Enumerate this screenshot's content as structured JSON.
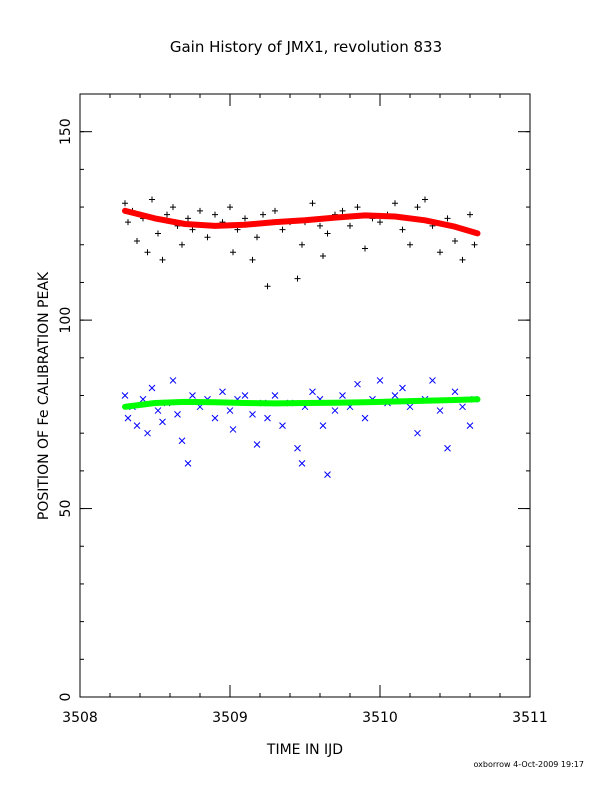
{
  "chart_data": {
    "type": "scatter",
    "title": "Gain History of JMX1, revolution 833",
    "xlabel": "TIME IN IJD",
    "ylabel": "POSITION OF Fe CALIBRATION PEAK",
    "xlim": [
      3508,
      3511
    ],
    "ylim": [
      0,
      160
    ],
    "x_ticks": [
      3508,
      3509,
      3510,
      3511
    ],
    "y_ticks": [
      0,
      50,
      100,
      150
    ],
    "x_ticks_minor_step": 0.2,
    "y_ticks_minor_step": 10,
    "grid": false,
    "x_range_observed": [
      3508.29,
      3510.65
    ],
    "series": [
      {
        "marker": "plus",
        "color": "#000000",
        "kind": "scatter",
        "x": [
          3508.3,
          3508.32,
          3508.35,
          3508.38,
          3508.42,
          3508.45,
          3508.48,
          3508.52,
          3508.55,
          3508.58,
          3508.62,
          3508.65,
          3508.68,
          3508.72,
          3508.75,
          3508.8,
          3508.85,
          3508.9,
          3508.95,
          3509.0,
          3509.02,
          3509.05,
          3509.1,
          3509.15,
          3509.18,
          3509.22,
          3509.25,
          3509.3,
          3509.35,
          3509.4,
          3509.45,
          3509.48,
          3509.5,
          3509.55,
          3509.6,
          3509.62,
          3509.65,
          3509.7,
          3509.75,
          3509.8,
          3509.85,
          3509.9,
          3509.95,
          3510.0,
          3510.05,
          3510.1,
          3510.15,
          3510.2,
          3510.25,
          3510.3,
          3510.35,
          3510.4,
          3510.45,
          3510.5,
          3510.55,
          3510.6,
          3510.63
        ],
        "y": [
          131,
          126,
          129,
          121,
          127,
          118,
          132,
          123,
          116,
          128,
          130,
          125,
          120,
          127,
          124,
          129,
          122,
          128,
          126,
          130,
          118,
          124,
          127,
          116,
          122,
          128,
          109,
          129,
          124,
          126,
          111,
          120,
          126,
          131,
          125,
          117,
          123,
          128,
          129,
          125,
          130,
          119,
          127,
          126,
          128,
          131,
          124,
          120,
          130,
          132,
          125,
          118,
          127,
          121,
          116,
          128,
          120
        ]
      },
      {
        "marker": "cross",
        "color": "#0000ff",
        "kind": "scatter",
        "x": [
          3508.3,
          3508.32,
          3508.35,
          3508.38,
          3508.42,
          3508.45,
          3508.48,
          3508.52,
          3508.55,
          3508.58,
          3508.62,
          3508.65,
          3508.68,
          3508.72,
          3508.75,
          3508.8,
          3508.85,
          3508.9,
          3508.95,
          3509.0,
          3509.02,
          3509.05,
          3509.1,
          3509.15,
          3509.18,
          3509.22,
          3509.25,
          3509.3,
          3509.35,
          3509.4,
          3509.45,
          3509.48,
          3509.5,
          3509.55,
          3509.6,
          3509.62,
          3509.65,
          3509.7,
          3509.75,
          3509.8,
          3509.85,
          3509.9,
          3509.95,
          3510.0,
          3510.05,
          3510.1,
          3510.15,
          3510.2,
          3510.25,
          3510.3,
          3510.35,
          3510.4,
          3510.45,
          3510.5,
          3510.55,
          3510.6,
          3510.63
        ],
        "y": [
          80,
          74,
          77,
          72,
          79,
          70,
          82,
          76,
          73,
          78,
          84,
          75,
          68,
          62,
          80,
          77,
          79,
          74,
          81,
          76,
          71,
          79,
          80,
          75,
          67,
          78,
          74,
          80,
          72,
          78,
          66,
          62,
          77,
          81,
          79,
          72,
          59,
          76,
          80,
          77,
          83,
          74,
          79,
          84,
          78,
          80,
          82,
          77,
          70,
          79,
          84,
          76,
          66,
          81,
          77,
          72,
          79
        ]
      },
      {
        "kind": "line",
        "color": "#ff0000",
        "x": [
          3508.3,
          3508.5,
          3508.7,
          3508.9,
          3509.1,
          3509.3,
          3509.5,
          3509.7,
          3509.9,
          3510.1,
          3510.3,
          3510.5,
          3510.65
        ],
        "y": [
          129,
          127,
          125.5,
          125,
          125.3,
          126,
          126.5,
          127.2,
          127.8,
          127.5,
          126.5,
          124.8,
          123
        ]
      },
      {
        "kind": "line",
        "color": "#00ff00",
        "x": [
          3508.3,
          3508.5,
          3508.7,
          3508.9,
          3509.1,
          3509.3,
          3509.5,
          3509.7,
          3509.9,
          3510.1,
          3510.3,
          3510.5,
          3510.65
        ],
        "y": [
          77,
          78,
          78.3,
          78.2,
          78,
          77.9,
          78,
          78.1,
          78.2,
          78.4,
          78.6,
          78.8,
          79
        ]
      }
    ]
  },
  "footer": {
    "text": "oxborrow   4-Oct-2009 19:17"
  }
}
